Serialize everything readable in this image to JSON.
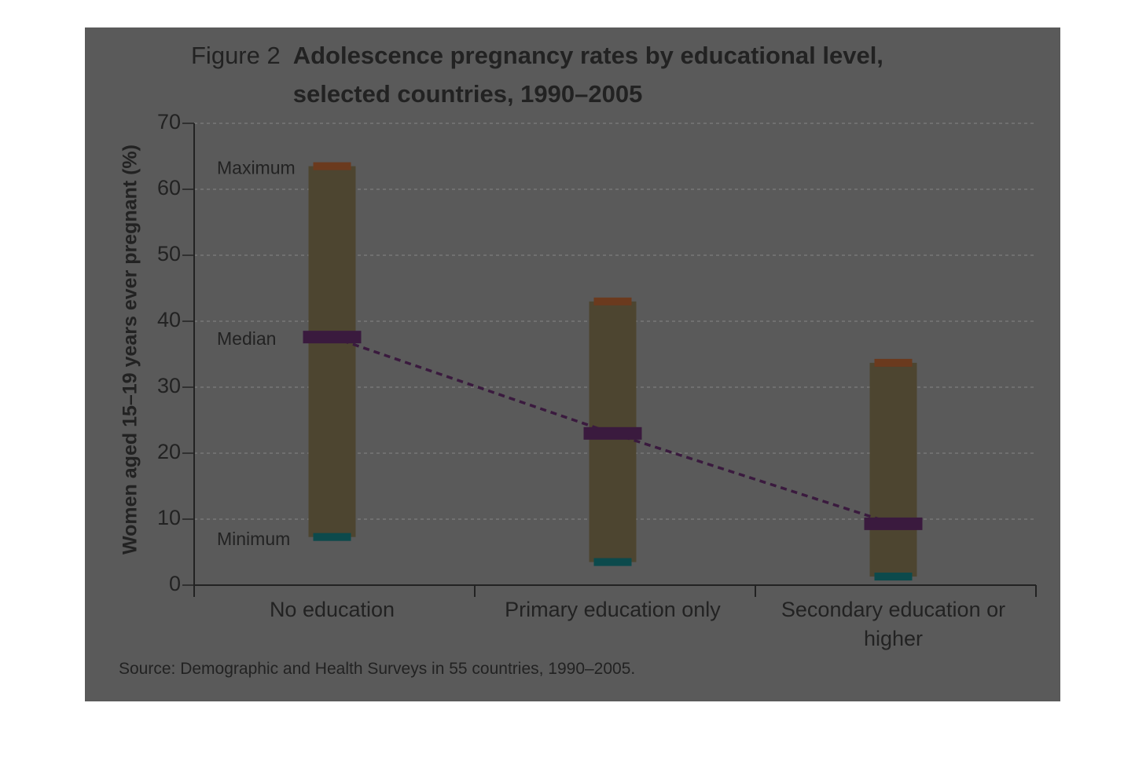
{
  "chart_data": {
    "type": "range",
    "figure_label": "Figure 2",
    "title": "Adolescence pregnancy rates by educational level, selected countries, 1990–2005",
    "y_label": "Women aged 15–19 years ever pregnant (%)",
    "source": "Source: Demographic and Health Surveys in 55 countries, 1990–2005.",
    "categories": [
      "No education",
      "Primary education only",
      "Secondary education or higher"
    ],
    "series": [
      {
        "name": "Maximum",
        "color": "#6b3a1e",
        "values": [
          63.5,
          43,
          33.7
        ]
      },
      {
        "name": "Median",
        "color": "#3a1a3e",
        "values": [
          37.6,
          23,
          9.3
        ]
      },
      {
        "name": "Minimum",
        "color": "#0c4a4c",
        "values": [
          7.3,
          3.5,
          1.3
        ]
      }
    ],
    "bar_color": "#4d4530",
    "ylim": [
      0,
      70
    ],
    "yticks": [
      0,
      10,
      20,
      30,
      40,
      50,
      60,
      70
    ],
    "grid": true
  }
}
